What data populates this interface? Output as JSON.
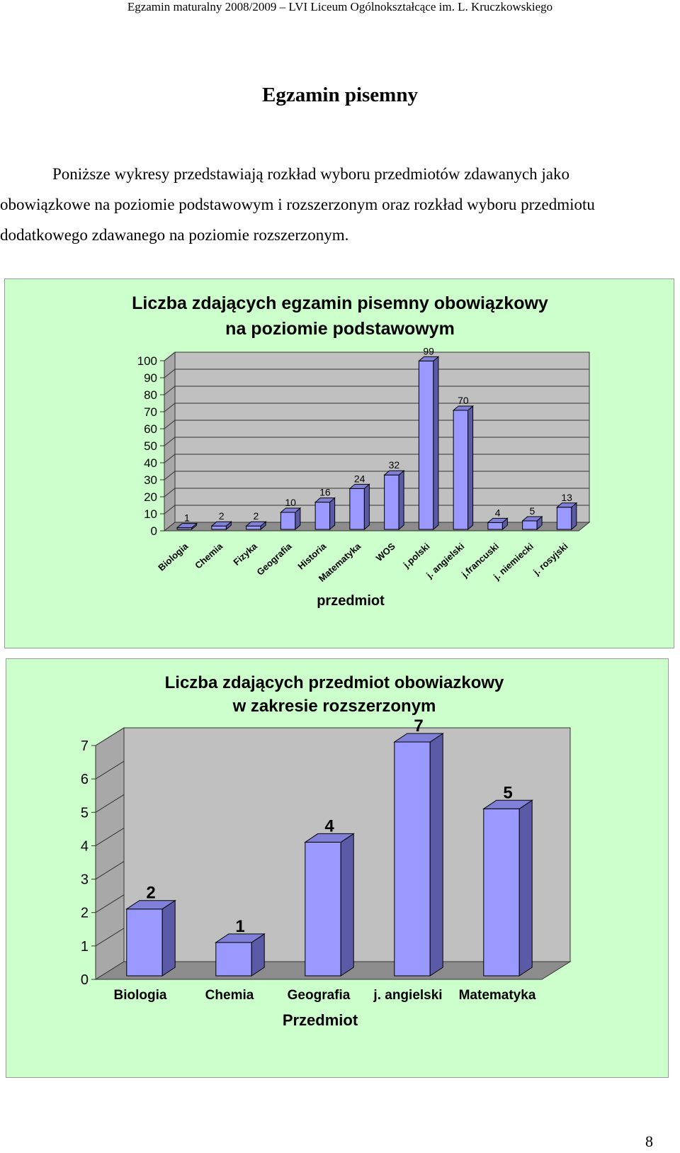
{
  "header": {
    "running_title": "Egzamin maturalny 2008/2009 – LVI Liceum Ogólnokształcące im. L. Kruczkowskiego"
  },
  "document": {
    "title": "Egzamin pisemny",
    "intro_lines": [
      "Poniższe wykresy przedstawiają rozkład wyboru przedmiotów zdawanych jako",
      "obowiązkowe na poziomie podstawowym i rozszerzonym oraz rozkład wyboru przedmiotu",
      "dodatkowego zdawanego na poziomie rozszerzonym."
    ],
    "page_number": "8"
  },
  "chart_data": [
    {
      "type": "bar",
      "title_lines": [
        "Liczba zdających egzamin pisemny obowiązkowy",
        "na poziomie podstawowym"
      ],
      "xlabel": "przedmiot",
      "ylabel": "",
      "categories": [
        "Biologia",
        "Chemia",
        "Fizyka",
        "Geografia",
        "Historia",
        "Matematyka",
        "WOS",
        "j.polski",
        "j. angielski",
        "j.francuski",
        "j. niemiecki",
        "j. rosyjski"
      ],
      "values": [
        1,
        2,
        2,
        10,
        16,
        24,
        32,
        99,
        70,
        4,
        5,
        13
      ],
      "ylim": [
        0,
        100
      ],
      "yticks": [
        0,
        10,
        20,
        30,
        40,
        50,
        60,
        70,
        80,
        90,
        100
      ],
      "grid": true,
      "colors": {
        "panel": "#ccffcc",
        "bar_front": "#9999ff",
        "bar_side": "#5a5aa6",
        "bar_top": "#8080d8",
        "wall": "#c0c0c0"
      }
    },
    {
      "type": "bar",
      "title_lines": [
        "Liczba zdających przedmiot obowiazkowy",
        "w zakresie rozszerzonym"
      ],
      "xlabel": "Przedmiot",
      "ylabel": "",
      "categories": [
        "Biologia",
        "Chemia",
        "Geografia",
        "j. angielski",
        "Matematyka"
      ],
      "values": [
        2,
        1,
        4,
        7,
        5
      ],
      "ylim": [
        0,
        7
      ],
      "yticks": [
        0,
        1,
        2,
        3,
        4,
        5,
        6,
        7
      ],
      "grid": false,
      "colors": {
        "panel": "#ccffcc",
        "bar_front": "#9999ff",
        "bar_side": "#5a5aa6",
        "bar_top": "#8080d8",
        "wall": "#c0c0c0"
      }
    }
  ]
}
